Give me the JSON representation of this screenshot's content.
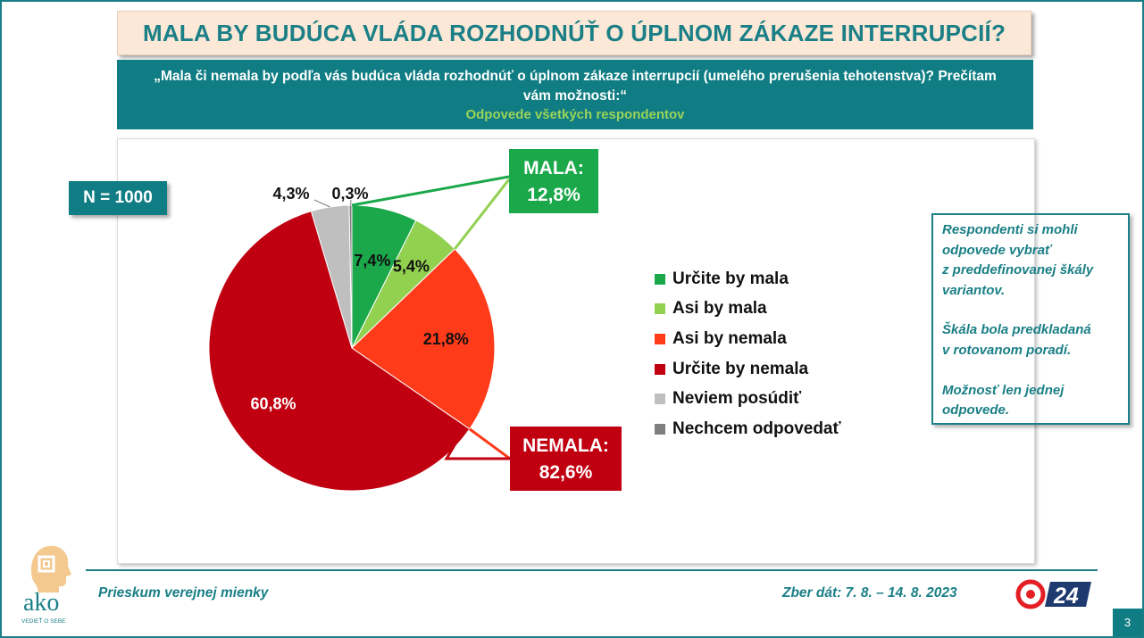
{
  "header": {
    "title": "MALA BY BUDÚCA VLÁDA ROZHODNÚŤ O ÚPLNOM ZÁKAZE INTERRUPCIÍ?",
    "question": "„Mala či nemala by podľa vás budúca vláda rozhodnúť o úplnom zákaze interrupcií (umelého prerušenia tehotenstva)? Prečítam vám možnosti:“",
    "subtitle": "Odpovede všetkých respondentov"
  },
  "sample": {
    "label": "N = 1000"
  },
  "chart_data": {
    "type": "pie",
    "start_angle_deg": 0,
    "direction": "clockwise",
    "slices": [
      {
        "label": "Určite by mala",
        "value": 7.4,
        "value_label": "7,4%",
        "color": "#1aa84a"
      },
      {
        "label": "Asi by mala",
        "value": 5.4,
        "value_label": "5,4%",
        "color": "#92d050"
      },
      {
        "label": "Asi by nemala",
        "value": 21.8,
        "value_label": "21,8%",
        "color": "#ff3b1a"
      },
      {
        "label": "Určite by nemala",
        "value": 60.8,
        "value_label": "60,8%",
        "color": "#c00010"
      },
      {
        "label": "Neviem posúdiť",
        "value": 4.3,
        "value_label": "4,3%",
        "color": "#bfbfbf"
      },
      {
        "label": "Nechcem odpovedať",
        "value": 0.3,
        "value_label": "0,3%",
        "color": "#7f7f7f"
      }
    ],
    "legend_position": "right",
    "groups": [
      {
        "label": "MALA:",
        "value_label": "12,8%",
        "value": 12.8,
        "color": "#1aa84a"
      },
      {
        "label": "NEMALA:",
        "value_label": "82,6%",
        "value": 82.6,
        "color": "#c00010"
      }
    ]
  },
  "note": {
    "paragraphs": [
      [
        "Respondenti si mohli",
        "odpovede vybrať",
        "z preddefinovanej škály",
        "variantov."
      ],
      [
        "Škála bola predkladaná",
        "v rotovanom poradí."
      ],
      [
        "Možnosť len jednej",
        "odpovede."
      ]
    ]
  },
  "footer": {
    "left": "Prieskum verejnej mienky",
    "right": "Zber dát: 7. 8. – 14. 8. 2023",
    "logo_text": "ako",
    "logo_tagline": "VEDIEŤ O SEBE",
    "brand_text": "24",
    "page_number": "3"
  },
  "colors": {
    "teal": "#1a7f86",
    "teal_dark": "#0f7d83",
    "title_bg": "#fbe8d6",
    "subtitle_green": "#9bd35a"
  }
}
